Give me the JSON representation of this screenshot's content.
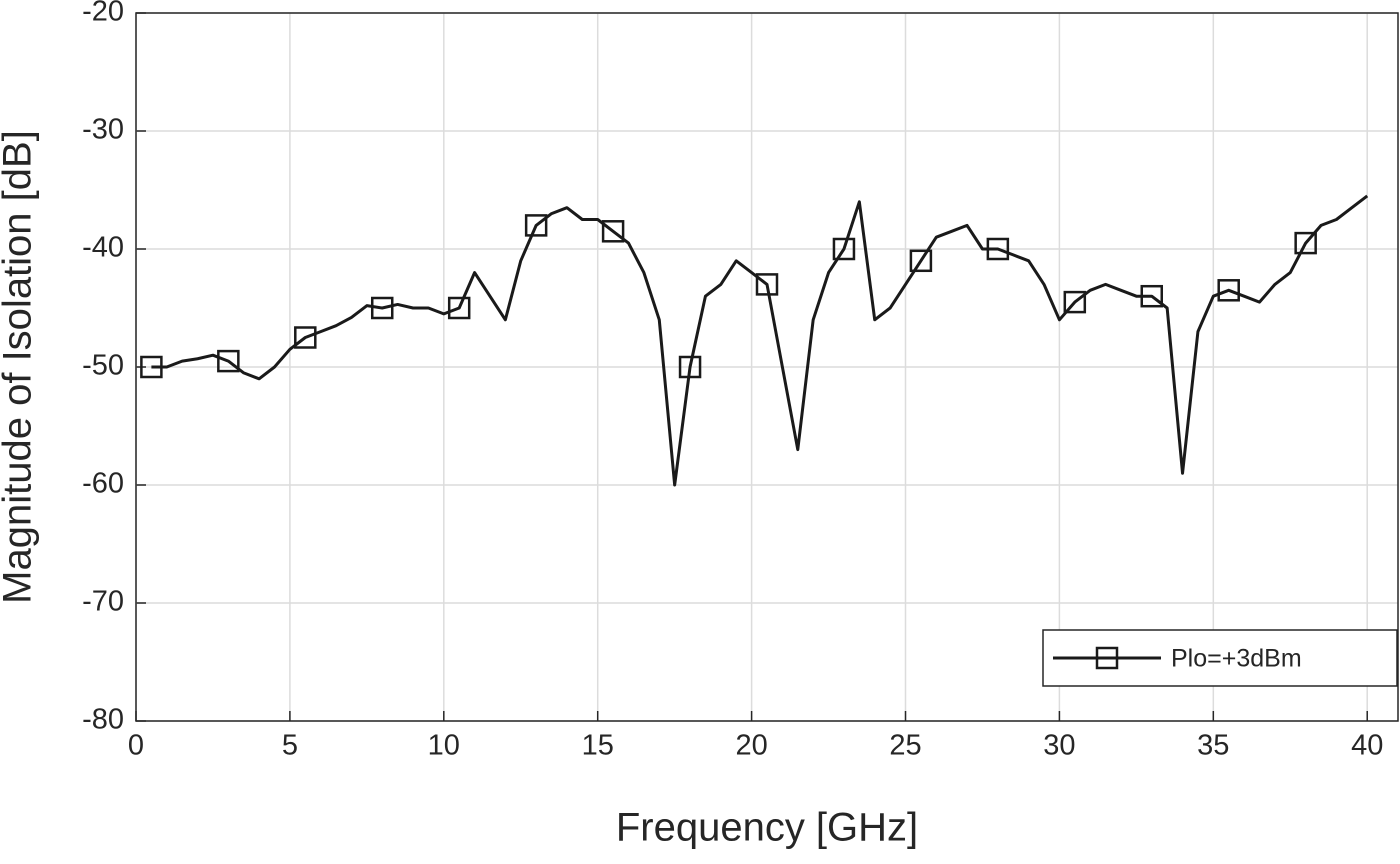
{
  "chart_data": {
    "type": "line",
    "xlabel": "Frequency [GHz]",
    "ylabel": "Magnitude of Isolation [dB]",
    "x": [
      0.5,
      1,
      1.5,
      2,
      2.5,
      3,
      3.5,
      4,
      4.5,
      5,
      5.5,
      6,
      6.5,
      7,
      7.5,
      8,
      8.5,
      9,
      9.5,
      10,
      10.5,
      11,
      11.5,
      12,
      12.5,
      13,
      13.5,
      14,
      14.5,
      15,
      15.5,
      16,
      16.5,
      17,
      17.5,
      18,
      18.5,
      19,
      19.5,
      20,
      20.5,
      21,
      21.5,
      22,
      22.5,
      23,
      23.5,
      24,
      24.5,
      25,
      25.5,
      26,
      26.5,
      27,
      27.5,
      28,
      28.5,
      29,
      29.5,
      30,
      30.5,
      31,
      31.5,
      32,
      32.5,
      33,
      33.5,
      34,
      34.5,
      35,
      35.5,
      36,
      36.5,
      37,
      37.5,
      38,
      38.5,
      39,
      39.5,
      40
    ],
    "series": [
      {
        "name": "Plo=+3dBm",
        "color": "#1a1a1a",
        "marker": "square",
        "markevery": 5,
        "values": [
          -50,
          -50,
          -49.5,
          -49.3,
          -49,
          -49.5,
          -50.5,
          -51,
          -50,
          -48.5,
          -47.5,
          -47,
          -46.5,
          -45.8,
          -44.8,
          -45,
          -44.7,
          -45,
          -45,
          -45.5,
          -45,
          -42,
          -44,
          -46,
          -41,
          -38,
          -37,
          -36.5,
          -37.5,
          -37.5,
          -38.5,
          -39.5,
          -42,
          -46,
          -60,
          -50,
          -44,
          -43,
          -41,
          -42,
          -43,
          -50,
          -57,
          -46,
          -42,
          -40,
          -36,
          -46,
          -45,
          -43,
          -41,
          -39,
          -38.5,
          -38,
          -40,
          -40,
          -40.5,
          -41,
          -43,
          -46,
          -44.5,
          -43.5,
          -43,
          -43.5,
          -44,
          -44,
          -45,
          -59,
          -47,
          -44,
          -43.5,
          -44,
          -44.5,
          -43,
          -42,
          -39.5,
          -38,
          -37.5,
          -36.5,
          -35.5
        ]
      }
    ],
    "xlim": [
      0,
      41
    ],
    "ylim": [
      -80,
      -20
    ],
    "xticks": [
      0,
      5,
      10,
      15,
      20,
      25,
      30,
      35,
      40
    ],
    "yticks": [
      -80,
      -70,
      -60,
      -50,
      -40,
      -30,
      -20
    ],
    "grid": true,
    "legend": "lower right"
  }
}
